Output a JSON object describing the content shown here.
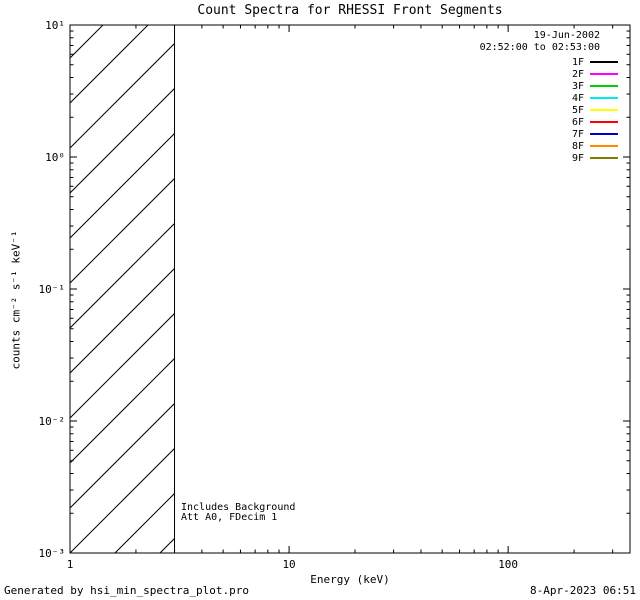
{
  "footer": {
    "left": "Generated by hsi_min_spectra_plot.pro",
    "right": "8-Apr-2023 06:51"
  },
  "chart_data": {
    "type": "line",
    "title": "Count Spectra for RHESSI Front Segments",
    "xlabel": "Energy (keV)",
    "ylabel": "counts cm⁻² s⁻¹ keV⁻¹",
    "xscale": "log",
    "yscale": "log",
    "xlim": [
      1,
      360
    ],
    "ylim": [
      0.001,
      10
    ],
    "grid": false,
    "xticks": [
      {
        "value": 1,
        "label": "1"
      },
      {
        "value": 10,
        "label": "10"
      },
      {
        "value": 100,
        "label": "100"
      }
    ],
    "yticks": [
      {
        "value": 0.001,
        "label": "10⁻³"
      },
      {
        "value": 0.01,
        "label": "10⁻²"
      },
      {
        "value": 0.1,
        "label": "10⁻¹"
      },
      {
        "value": 1,
        "label": "10⁰"
      },
      {
        "value": 10,
        "label": "10¹"
      }
    ],
    "hatched_region": {
      "x_min_keV": 1,
      "x_max_keV": 3,
      "style": "diagonal-hatch"
    },
    "annotations": [
      "Includes Background",
      "Att A0, FDecim 1"
    ],
    "legend": {
      "position": "top-right",
      "date": "19-Jun-2002",
      "time_range": "02:52:00 to 02:53:00",
      "entries": [
        {
          "label": "1F",
          "color": "#000000"
        },
        {
          "label": "2F",
          "color": "#ff00ff"
        },
        {
          "label": "3F",
          "color": "#00cc00"
        },
        {
          "label": "4F",
          "color": "#00eeee"
        },
        {
          "label": "5F",
          "color": "#ffff00"
        },
        {
          "label": "6F",
          "color": "#ff0000"
        },
        {
          "label": "7F",
          "color": "#0000cc"
        },
        {
          "label": "8F",
          "color": "#ff8800"
        },
        {
          "label": "9F",
          "color": "#808000"
        }
      ]
    },
    "series": []
  }
}
